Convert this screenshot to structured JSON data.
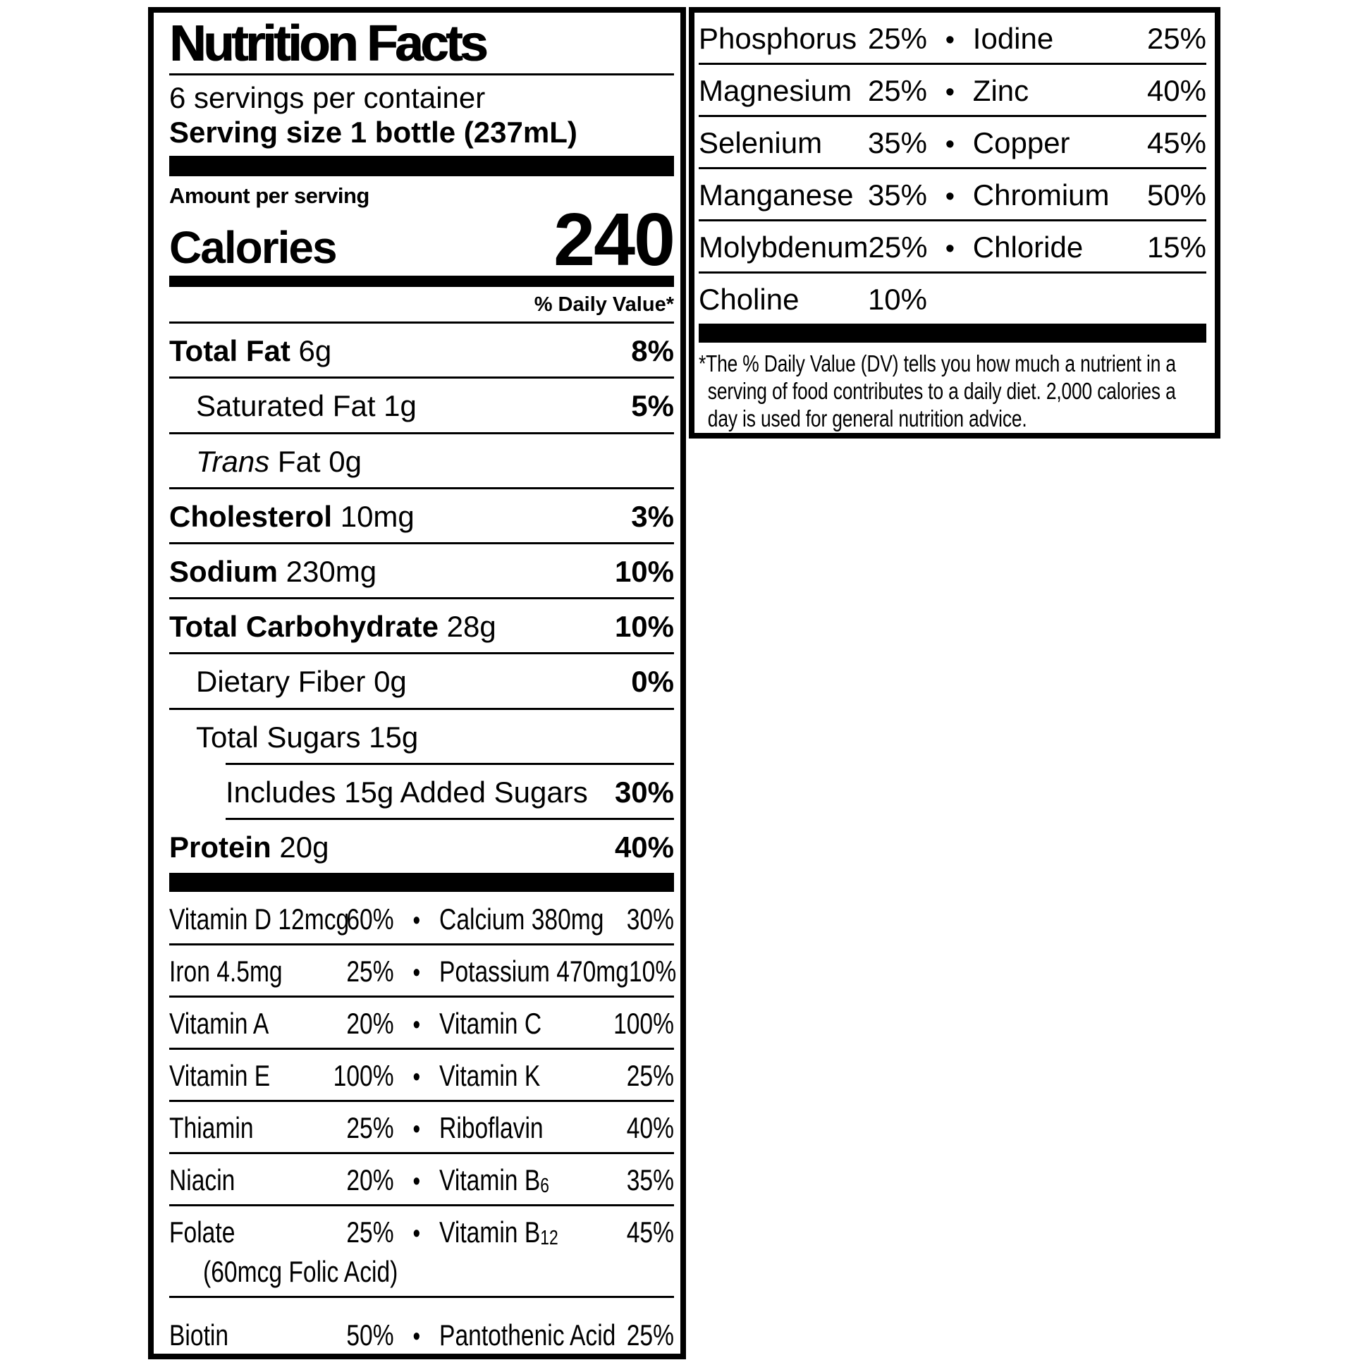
{
  "page": {
    "background": "#ffffff",
    "ink": "#000000",
    "bullet": "•"
  },
  "main_panel": {
    "title": "Nutrition Facts",
    "servings_per_container": "6 servings per container",
    "serving_size_label": "Serving size",
    "serving_size_value": "1 bottle (237mL)",
    "amount_per_serving_label": "Amount per serving",
    "calories_label": "Calories",
    "calories_value": "240",
    "daily_value_header": "% Daily Value*",
    "nutrients": [
      {
        "name": "Total Fat",
        "amount": "6g",
        "dv": "8%",
        "bold": true,
        "indent": 0
      },
      {
        "name": "Saturated Fat",
        "amount": "1g",
        "dv": "5%",
        "bold": false,
        "indent": 1
      },
      {
        "name_italic": "Trans",
        "name": "Fat",
        "amount": "0g",
        "dv": "",
        "bold": false,
        "indent": 1
      },
      {
        "name": "Cholesterol",
        "amount": "10mg",
        "dv": "3%",
        "bold": true,
        "indent": 0
      },
      {
        "name": "Sodium",
        "amount": "230mg",
        "dv": "10%",
        "bold": true,
        "indent": 0
      },
      {
        "name": "Total Carbohydrate",
        "amount": "28g",
        "dv": "10%",
        "bold": true,
        "indent": 0
      },
      {
        "name": "Dietary Fiber",
        "amount": "0g",
        "dv": "0%",
        "bold": false,
        "indent": 1
      },
      {
        "name": "Total Sugars",
        "amount": "15g",
        "dv": "",
        "bold": false,
        "indent": 1,
        "no_rule_below": true
      },
      {
        "name": "Includes 15g Added Sugars",
        "amount": "",
        "dv": "30%",
        "bold": false,
        "indent": 2,
        "partial_rule": true
      },
      {
        "name": "Protein",
        "amount": "20g",
        "dv": "40%",
        "bold": true,
        "indent": 0,
        "no_rule_below": true
      }
    ],
    "vitamin_rows": [
      {
        "cells": [
          {
            "name": "Vitamin D 12mcg",
            "dv": "60%"
          },
          {
            "name": "Calcium 380mg",
            "dv": "30%"
          }
        ]
      },
      {
        "cells": [
          {
            "name": "Iron 4.5mg",
            "dv": "25%"
          },
          {
            "name": "Potassium 470mg",
            "dv": "10%"
          }
        ]
      },
      {
        "cells": [
          {
            "name": "Vitamin A",
            "dv": "20%"
          },
          {
            "name": "Vitamin C",
            "dv": "100%"
          }
        ]
      },
      {
        "cells": [
          {
            "name": "Vitamin E",
            "dv": "100%"
          },
          {
            "name": "Vitamin K",
            "dv": "25%"
          }
        ]
      },
      {
        "cells": [
          {
            "name": "Thiamin",
            "dv": "25%"
          },
          {
            "name": "Riboflavin",
            "dv": "40%"
          }
        ]
      },
      {
        "cells": [
          {
            "name": "Niacin",
            "dv": "20%"
          },
          {
            "name": "Vitamin B",
            "name_sub": "6",
            "dv": "35%"
          }
        ]
      },
      {
        "cells": [
          {
            "name": "Folate",
            "dv": "25%"
          },
          {
            "name": "Vitamin B",
            "name_sub": "12",
            "dv": "45%"
          }
        ],
        "subline": "(60mcg Folic Acid)"
      },
      {
        "cells": [
          {
            "name": "Biotin",
            "dv": "50%"
          },
          {
            "name": "Pantothenic Acid",
            "dv": "25%"
          }
        ],
        "extra_gap": true,
        "last": true
      }
    ]
  },
  "side_panel": {
    "mineral_rows": [
      {
        "cells": [
          {
            "name": "Phosphorus",
            "dv": "25%"
          },
          {
            "name": "Iodine",
            "dv": "25%"
          }
        ]
      },
      {
        "cells": [
          {
            "name": "Magnesium",
            "dv": "25%"
          },
          {
            "name": "Zinc",
            "dv": "40%"
          }
        ]
      },
      {
        "cells": [
          {
            "name": "Selenium",
            "dv": "35%"
          },
          {
            "name": "Copper",
            "dv": "45%"
          }
        ]
      },
      {
        "cells": [
          {
            "name": "Manganese",
            "dv": "35%"
          },
          {
            "name": "Chromium",
            "dv": "50%"
          }
        ]
      },
      {
        "cells": [
          {
            "name": "Molybdenum",
            "dv": "25%"
          },
          {
            "name": "Chloride",
            "dv": "15%"
          }
        ]
      },
      {
        "cells": [
          {
            "name": "Choline",
            "dv": "10%"
          }
        ],
        "last": true
      }
    ],
    "footnote": "*The % Daily Value (DV) tells you how much a nutrient in a serving of food contributes to a daily diet. 2,000 calories a day is used for general nutrition advice."
  }
}
